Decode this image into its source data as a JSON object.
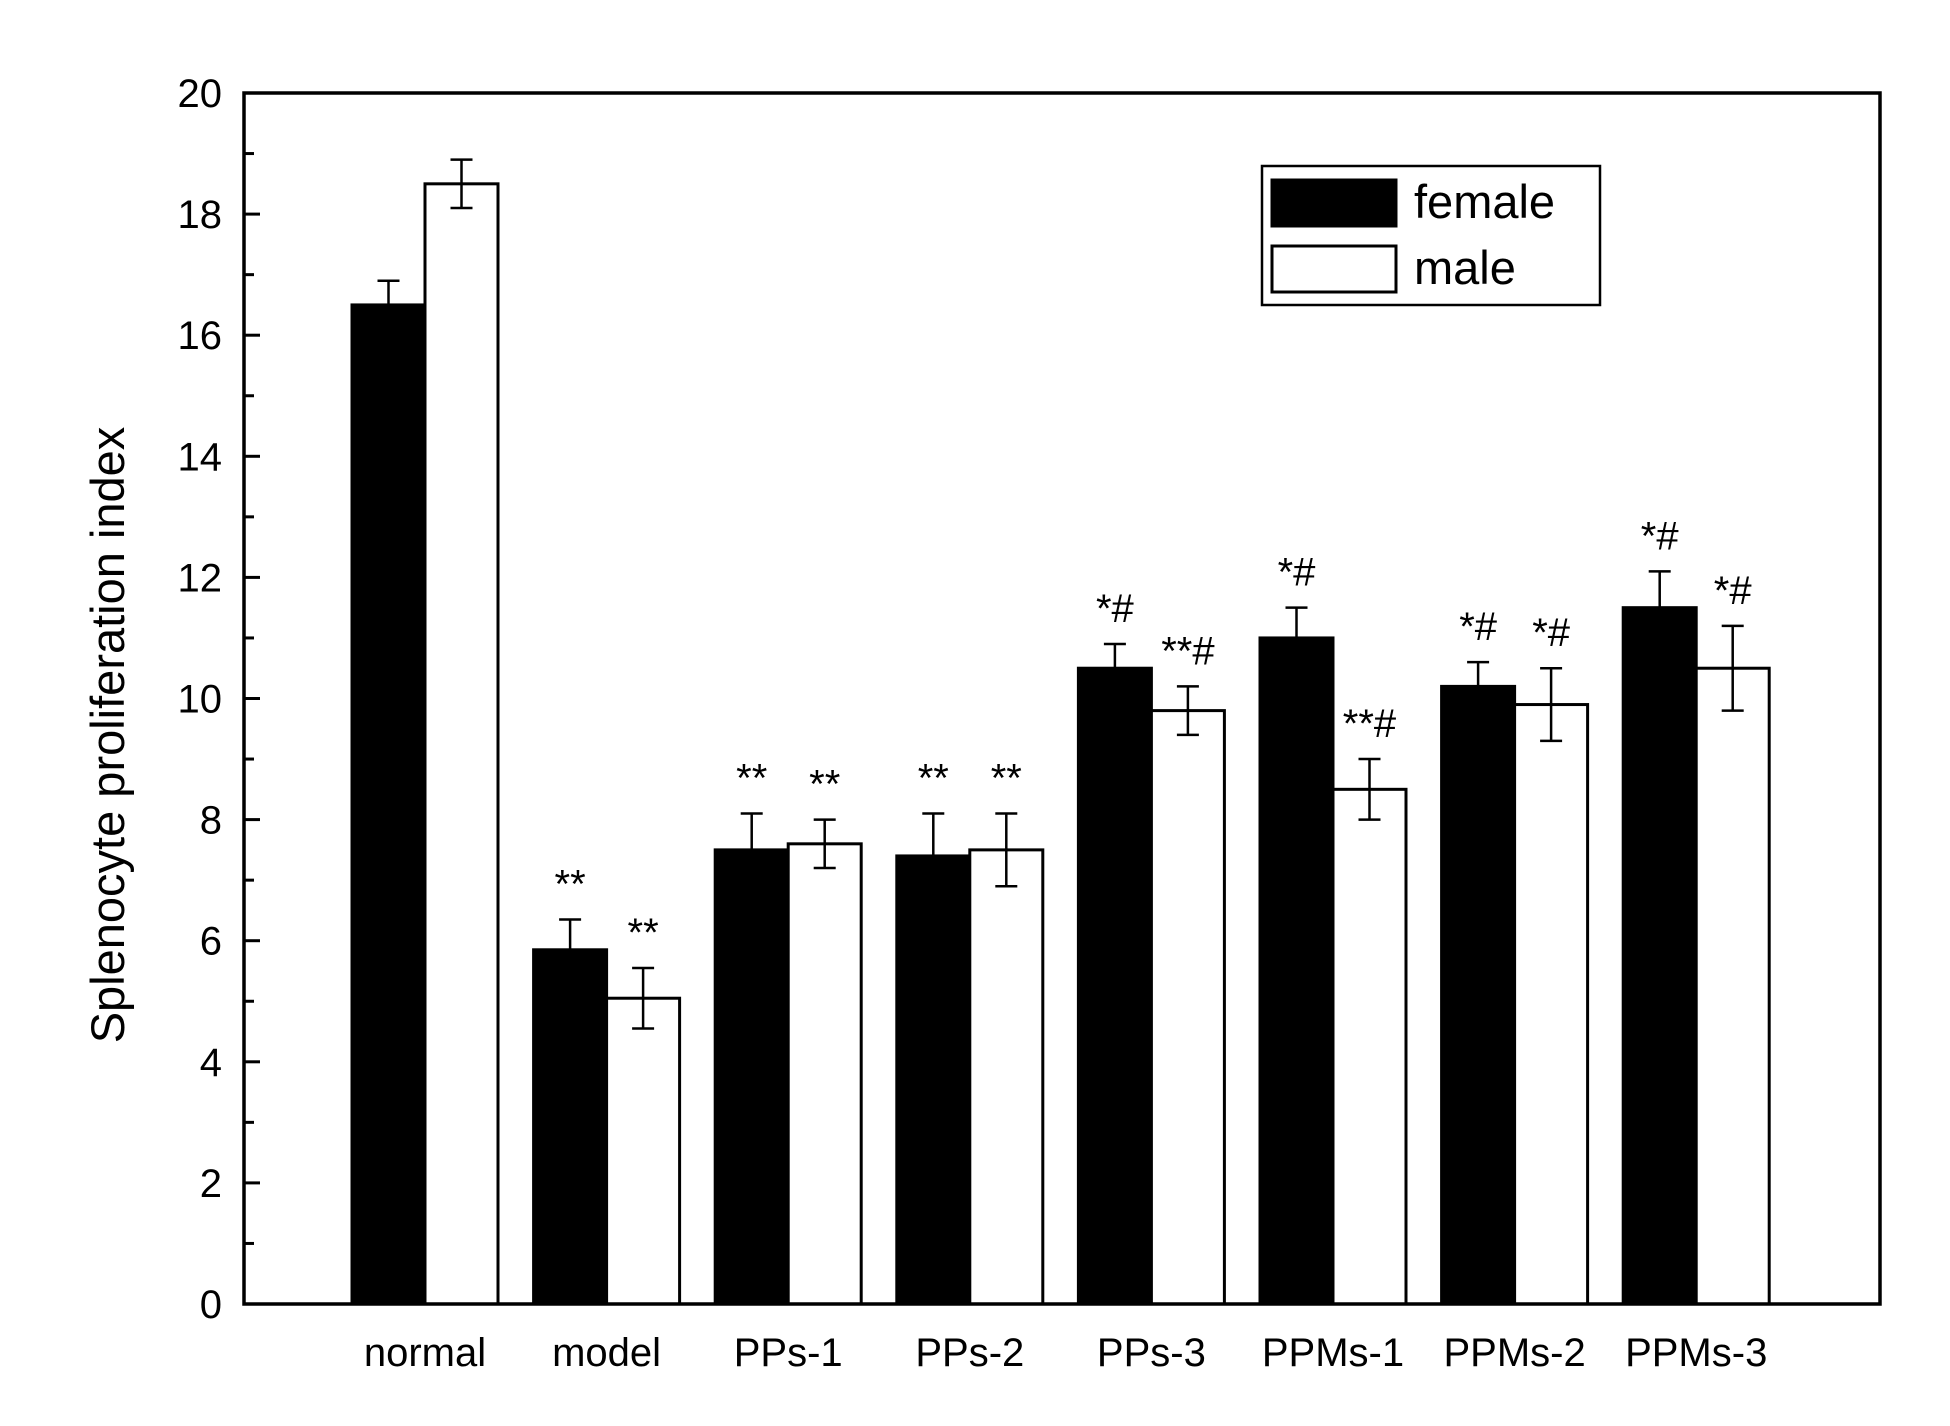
{
  "chart_data": {
    "type": "bar",
    "ylabel": "Splenocyte proliferation index",
    "xlabel": "",
    "ylim": [
      0,
      20
    ],
    "y_major_ticks": [
      "0",
      "2",
      "4",
      "6",
      "8",
      "10",
      "12",
      "14",
      "16",
      "18",
      "20"
    ],
    "y_minor_step": 1,
    "categories": [
      "normal",
      "model",
      "PPs-1",
      "PPs-2",
      "PPs-3",
      "PPMs-1",
      "PPMs-2",
      "PPMs-3"
    ],
    "series": [
      {
        "name": "female",
        "fill": "#000000",
        "values": [
          16.5,
          5.85,
          7.5,
          7.4,
          10.5,
          11.0,
          10.2,
          11.5
        ],
        "errors": [
          0.4,
          0.5,
          0.6,
          0.7,
          0.4,
          0.5,
          0.4,
          0.6
        ],
        "annotations": [
          "",
          "**",
          "**",
          "**",
          "*#",
          "*#",
          "*#",
          "*#"
        ]
      },
      {
        "name": "male",
        "fill": "#ffffff",
        "values": [
          18.5,
          5.05,
          7.6,
          7.5,
          9.8,
          8.5,
          9.9,
          10.5
        ],
        "errors": [
          0.4,
          0.5,
          0.4,
          0.6,
          0.4,
          0.5,
          0.6,
          0.7
        ],
        "annotations": [
          "",
          "**",
          "**",
          "**",
          "**#",
          "**#",
          "*#",
          "*#"
        ]
      }
    ],
    "legend": {
      "position": "top-right"
    },
    "grid": false
  }
}
